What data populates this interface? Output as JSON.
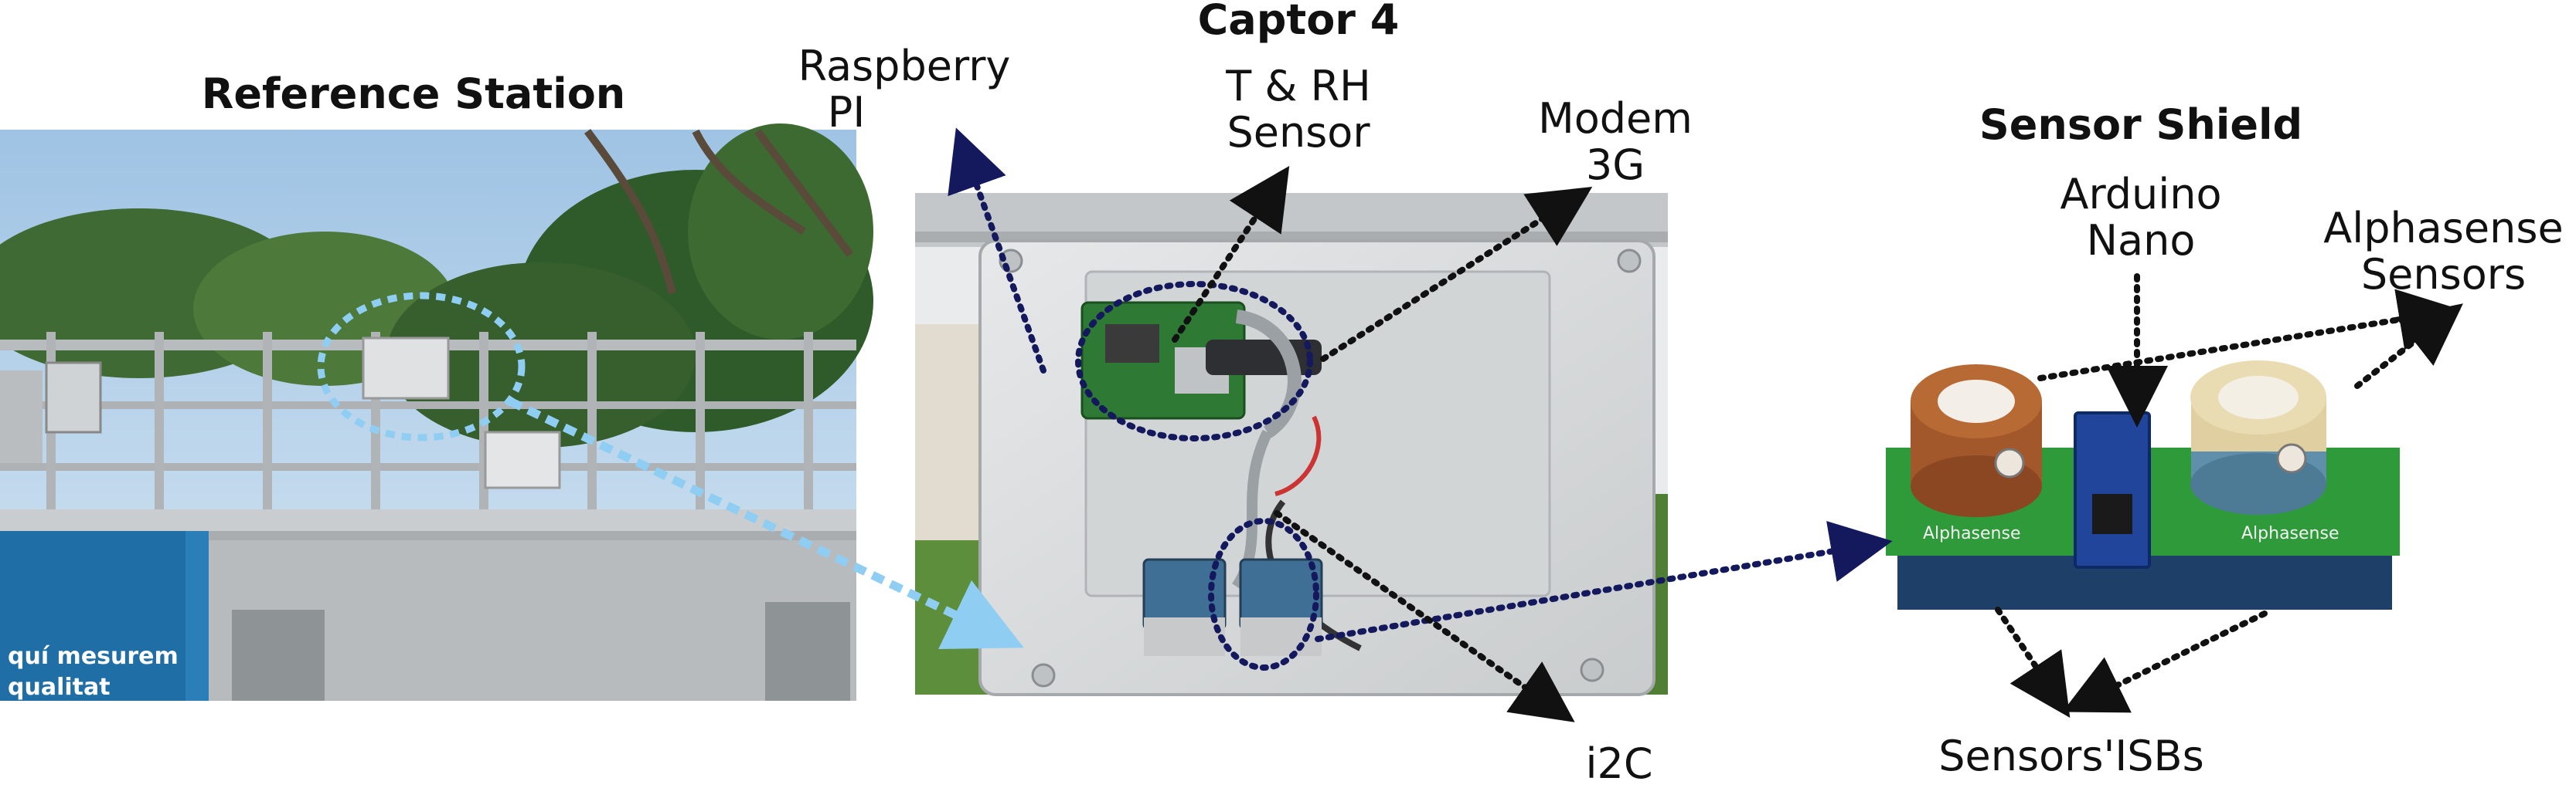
{
  "panels": {
    "reference_station": {
      "title": "Reference Station",
      "banner_lines": [
        "quí mesurem",
        "qualitat"
      ]
    },
    "captor": {
      "title": "Captor 4"
    },
    "sensor_shield": {
      "title": "Sensor Shield",
      "board_text": "Alphasense"
    }
  },
  "labels": {
    "raspberry": [
      "Raspberry",
      "PI"
    ],
    "trh": [
      "T & RH",
      "Sensor"
    ],
    "modem": [
      "Modem",
      "3G"
    ],
    "i2c": "i2C",
    "arduino": [
      "Arduino",
      "Nano"
    ],
    "alphasense": [
      "Alphasense",
      "Sensors"
    ],
    "isbs": "Sensors'ISBs"
  },
  "colors": {
    "navy_arrow": "#14195e",
    "black_arrow": "#111111",
    "light_blue_arrow": "#8fcdf2",
    "enclosure_grey": "#d8dadb",
    "pcb_green": "#2e9a3a",
    "station_blue": "#1f6ea6"
  }
}
